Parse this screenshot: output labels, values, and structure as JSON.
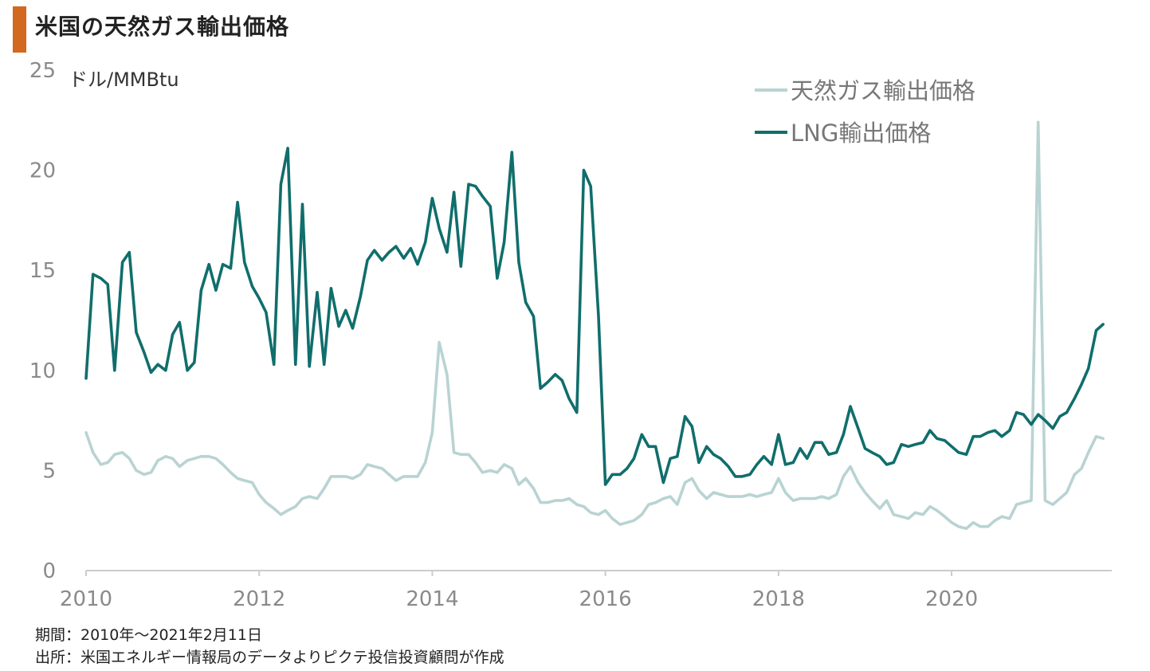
{
  "title": "米国の天然ガス輸出価格",
  "unit": "ドル/MMBtu",
  "colors": {
    "title_bar": "#d2691e",
    "natural_gas": "#b9d3d3",
    "lng": "#106e6c",
    "axis": "#cccccc"
  },
  "footer": {
    "period": "期間：2010年～2021年2月11日",
    "source": "出所：米国エネルギー情報局のデータよりピクテ投信投資顧問が作成"
  },
  "chart_data": {
    "type": "line",
    "ylim": [
      0,
      25
    ],
    "yticks": [
      0,
      5,
      10,
      15,
      20,
      25
    ],
    "xlim": [
      2010.0,
      2021.85
    ],
    "xticks": [
      2010,
      2012,
      2014,
      2016,
      2018,
      2020
    ],
    "legend": "top-right",
    "grid": false,
    "series": [
      {
        "name": "天然ガス輸出価格",
        "x": [
          2010.0,
          2010.08,
          2010.17,
          2010.25,
          2010.33,
          2010.42,
          2010.5,
          2010.58,
          2010.67,
          2010.75,
          2010.83,
          2010.92,
          2011.0,
          2011.08,
          2011.17,
          2011.25,
          2011.33,
          2011.42,
          2011.5,
          2011.58,
          2011.67,
          2011.75,
          2011.83,
          2011.92,
          2012.0,
          2012.08,
          2012.17,
          2012.25,
          2012.33,
          2012.42,
          2012.5,
          2012.58,
          2012.67,
          2012.75,
          2012.83,
          2012.92,
          2013.0,
          2013.08,
          2013.17,
          2013.25,
          2013.33,
          2013.42,
          2013.5,
          2013.58,
          2013.67,
          2013.75,
          2013.83,
          2013.92,
          2014.0,
          2014.08,
          2014.17,
          2014.25,
          2014.33,
          2014.42,
          2014.5,
          2014.58,
          2014.67,
          2014.75,
          2014.83,
          2014.92,
          2015.0,
          2015.08,
          2015.17,
          2015.25,
          2015.33,
          2015.42,
          2015.5,
          2015.58,
          2015.67,
          2015.75,
          2015.83,
          2015.92,
          2016.0,
          2016.08,
          2016.17,
          2016.25,
          2016.33,
          2016.42,
          2016.5,
          2016.58,
          2016.67,
          2016.75,
          2016.83,
          2016.92,
          2017.0,
          2017.08,
          2017.17,
          2017.25,
          2017.33,
          2017.42,
          2017.5,
          2017.58,
          2017.67,
          2017.75,
          2017.83,
          2017.92,
          2018.0,
          2018.08,
          2018.17,
          2018.25,
          2018.33,
          2018.42,
          2018.5,
          2018.58,
          2018.67,
          2018.75,
          2018.83,
          2018.92,
          2019.0,
          2019.08,
          2019.17,
          2019.25,
          2019.33,
          2019.42,
          2019.5,
          2019.58,
          2019.67,
          2019.75,
          2019.83,
          2019.92,
          2020.0,
          2020.08,
          2020.17,
          2020.25,
          2020.33,
          2020.42,
          2020.5,
          2020.58,
          2020.67,
          2020.75,
          2020.83,
          2020.92,
          2021.0,
          2021.08,
          2021.17,
          2021.25,
          2021.33,
          2021.42,
          2021.5,
          2021.58,
          2021.67,
          2021.75
        ],
        "y": [
          6.9,
          5.9,
          5.3,
          5.4,
          5.8,
          5.9,
          5.6,
          5.0,
          4.8,
          4.9,
          5.5,
          5.7,
          5.6,
          5.2,
          5.5,
          5.6,
          5.7,
          5.7,
          5.6,
          5.3,
          4.9,
          4.6,
          4.5,
          4.4,
          3.8,
          3.4,
          3.1,
          2.8,
          3.0,
          3.2,
          3.6,
          3.7,
          3.6,
          4.1,
          4.7,
          4.7,
          4.7,
          4.6,
          4.8,
          5.3,
          5.2,
          5.1,
          4.8,
          4.5,
          4.7,
          4.7,
          4.7,
          5.4,
          6.9,
          11.4,
          9.8,
          5.9,
          5.8,
          5.8,
          5.4,
          4.9,
          5.0,
          4.9,
          5.3,
          5.1,
          4.3,
          4.6,
          4.1,
          3.4,
          3.4,
          3.5,
          3.5,
          3.6,
          3.3,
          3.2,
          2.9,
          2.8,
          3.0,
          2.6,
          2.3,
          2.4,
          2.5,
          2.8,
          3.3,
          3.4,
          3.6,
          3.7,
          3.3,
          4.4,
          4.6,
          4.0,
          3.6,
          3.9,
          3.8,
          3.7,
          3.7,
          3.7,
          3.8,
          3.7,
          3.8,
          3.9,
          4.6,
          3.9,
          3.5,
          3.6,
          3.6,
          3.6,
          3.7,
          3.6,
          3.8,
          4.7,
          5.2,
          4.4,
          3.9,
          3.5,
          3.1,
          3.5,
          2.8,
          2.7,
          2.6,
          2.9,
          2.8,
          3.2,
          3.0,
          2.7,
          2.4,
          2.2,
          2.1,
          2.4,
          2.2,
          2.2,
          2.5,
          2.7,
          2.6,
          3.3,
          3.4,
          3.5,
          22.4,
          3.5,
          3.3,
          3.6,
          3.9,
          4.8,
          5.1,
          5.9,
          6.7,
          6.6
        ]
      },
      {
        "name": "LNG輸出価格",
        "x": [
          2010.0,
          2010.08,
          2010.17,
          2010.25,
          2010.33,
          2010.42,
          2010.5,
          2010.58,
          2010.67,
          2010.75,
          2010.83,
          2010.92,
          2011.0,
          2011.08,
          2011.17,
          2011.25,
          2011.33,
          2011.42,
          2011.5,
          2011.58,
          2011.67,
          2011.75,
          2011.83,
          2011.92,
          2012.0,
          2012.08,
          2012.17,
          2012.25,
          2012.33,
          2012.42,
          2012.5,
          2012.58,
          2012.67,
          2012.75,
          2012.83,
          2012.92,
          2013.0,
          2013.08,
          2013.17,
          2013.25,
          2013.33,
          2013.42,
          2013.5,
          2013.58,
          2013.67,
          2013.75,
          2013.83,
          2013.92,
          2014.0,
          2014.08,
          2014.17,
          2014.25,
          2014.33,
          2014.42,
          2014.5,
          2014.58,
          2014.67,
          2014.75,
          2014.83,
          2014.92,
          2015.0,
          2015.08,
          2015.17,
          2015.25,
          2015.33,
          2015.42,
          2015.5,
          2015.58,
          2015.67,
          2015.75,
          2015.83,
          2015.92,
          2016.0,
          2016.08,
          2016.17,
          2016.25,
          2016.33,
          2016.42,
          2016.5,
          2016.58,
          2016.67,
          2016.75,
          2016.83,
          2016.92,
          2017.0,
          2017.08,
          2017.17,
          2017.25,
          2017.33,
          2017.42,
          2017.5,
          2017.58,
          2017.67,
          2017.75,
          2017.83,
          2017.92,
          2018.0,
          2018.08,
          2018.17,
          2018.25,
          2018.33,
          2018.42,
          2018.5,
          2018.58,
          2018.67,
          2018.75,
          2018.83,
          2018.92,
          2019.0,
          2019.08,
          2019.17,
          2019.25,
          2019.33,
          2019.42,
          2019.5,
          2019.58,
          2019.67,
          2019.75,
          2019.83,
          2019.92,
          2020.0,
          2020.08,
          2020.17,
          2020.25,
          2020.33,
          2020.42,
          2020.5,
          2020.58,
          2020.67,
          2020.75,
          2020.83,
          2020.92,
          2021.0,
          2021.08,
          2021.17,
          2021.25,
          2021.33,
          2021.42,
          2021.5,
          2021.58,
          2021.67,
          2021.75
        ],
        "y": [
          9.6,
          14.8,
          14.6,
          14.3,
          10.0,
          15.4,
          15.9,
          11.9,
          10.9,
          9.9,
          10.3,
          10.0,
          11.8,
          12.4,
          10.0,
          10.4,
          14.0,
          15.3,
          14.0,
          15.3,
          15.1,
          18.4,
          15.4,
          14.2,
          13.6,
          12.9,
          10.3,
          19.3,
          21.1,
          10.3,
          18.3,
          10.2,
          13.9,
          10.3,
          14.1,
          12.2,
          13.0,
          12.1,
          13.7,
          15.5,
          16.0,
          15.5,
          15.9,
          16.2,
          15.6,
          16.1,
          15.3,
          16.4,
          18.6,
          17.1,
          15.9,
          18.9,
          15.2,
          19.3,
          19.2,
          18.7,
          18.2,
          14.6,
          16.4,
          20.9,
          15.4,
          13.4,
          12.7,
          9.1,
          9.4,
          9.8,
          9.5,
          8.6,
          7.9,
          20.0,
          19.2,
          12.7,
          4.3,
          4.8,
          4.8,
          5.1,
          5.6,
          6.8,
          6.2,
          6.2,
          4.4,
          5.6,
          5.7,
          7.7,
          7.2,
          5.4,
          6.2,
          5.8,
          5.6,
          5.2,
          4.7,
          4.7,
          4.8,
          5.3,
          5.7,
          5.3,
          6.8,
          5.3,
          5.4,
          6.1,
          5.6,
          6.4,
          6.4,
          5.8,
          5.9,
          6.8,
          8.2,
          7.1,
          6.1,
          5.9,
          5.7,
          5.3,
          5.4,
          6.3,
          6.2,
          6.3,
          6.4,
          7.0,
          6.6,
          6.5,
          6.2,
          5.9,
          5.8,
          6.7,
          6.7,
          6.9,
          7.0,
          6.7,
          7.0,
          7.9,
          7.8,
          7.3,
          7.8,
          7.5,
          7.1,
          7.7,
          7.9,
          8.6,
          9.3,
          10.1,
          12.0,
          12.3
        ]
      }
    ]
  }
}
